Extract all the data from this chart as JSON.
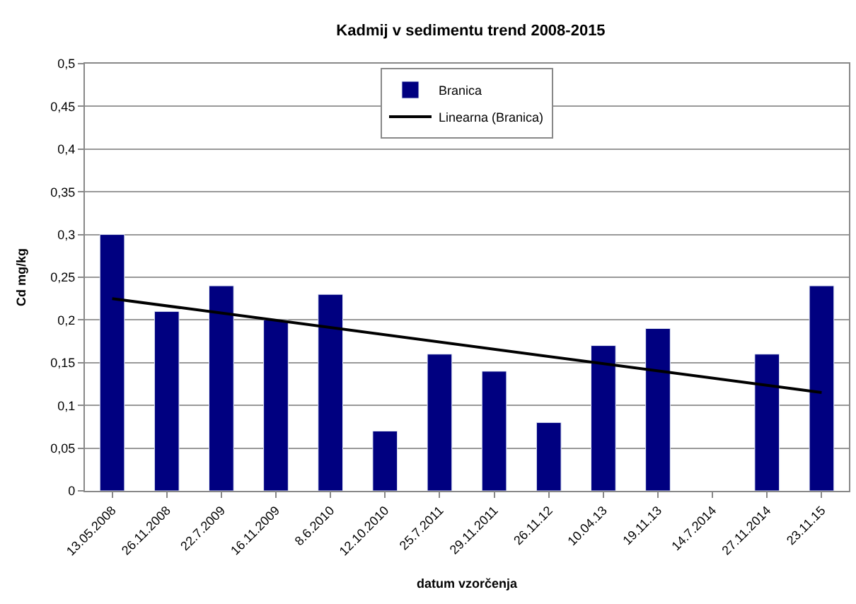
{
  "chart_data": {
    "type": "bar",
    "title": "Kadmij v sedimentu trend 2008-2015",
    "xlabel": "datum vzorčenja",
    "ylabel": "Cd mg/kg",
    "categories": [
      "13.05.2008",
      "26.11.2008",
      "22.7.2009",
      "16.11.2009",
      "8.6.2010",
      "12.10.2010",
      "25.7.2011",
      "29.11.2011",
      "26.11.12",
      "10.04.13",
      "19.11.13",
      "14.7.2014",
      "27.11.2014",
      "23.11.15"
    ],
    "series": [
      {
        "name": "Branica",
        "color": "#000080",
        "values": [
          0.3,
          0.21,
          0.24,
          0.2,
          0.23,
          0.07,
          0.16,
          0.14,
          0.08,
          0.17,
          0.19,
          null,
          0.16,
          0.24
        ]
      },
      {
        "name": "Linearna (Branica)",
        "type": "line",
        "color": "#000000",
        "x": [
          "13.05.2008",
          "23.11.15"
        ],
        "values": [
          0.225,
          0.115
        ],
        "line_style": "solid",
        "marker": "none"
      }
    ],
    "ylim": [
      0,
      0.5
    ],
    "yticks": [
      0,
      {
        "value": 0.05,
        "label": "0,05"
      },
      {
        "value": 0.1,
        "label": "0,1"
      },
      {
        "value": 0.15,
        "label": "0,15"
      },
      {
        "value": 0.2,
        "label": "0,2"
      },
      {
        "value": 0.25,
        "label": "0,25"
      },
      {
        "value": 0.3,
        "label": "0,3"
      },
      {
        "value": 0.35,
        "label": "0,35"
      },
      {
        "value": 0.4,
        "label": "0,4"
      },
      {
        "value": 0.45,
        "label": "0,45"
      },
      {
        "value": 0.5,
        "label": "0,5"
      }
    ],
    "grid": "y",
    "legend": "top"
  }
}
